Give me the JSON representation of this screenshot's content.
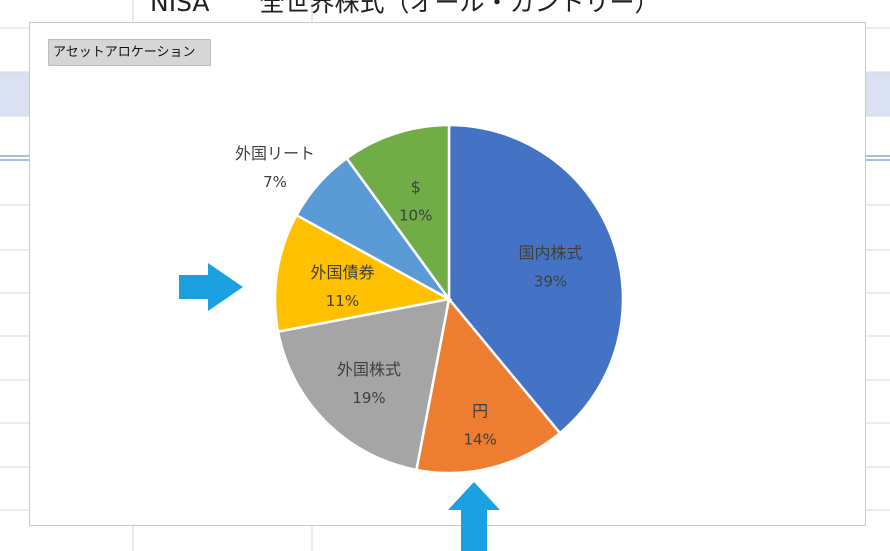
{
  "sheet": {
    "title": "NISA　　全世界株式（オール・カントリー）"
  },
  "chart": {
    "field_button": "アセットアロケーション"
  },
  "colors": {
    "国内株式": "#4472c4",
    "円": "#ed7d31",
    "外国株式": "#a5a5a5",
    "外国債券": "#ffc000",
    "外国リート": "#5b9bd5",
    "$": "#70ad47",
    "arrow": "#1ba1e2",
    "grid": "#d9d9d9"
  },
  "chart_data": {
    "type": "pie",
    "title": "",
    "categories": [
      "国内株式",
      "円",
      "外国株式",
      "外国債券",
      "外国リート",
      "$"
    ],
    "values": [
      39,
      14,
      19,
      11,
      7,
      10
    ],
    "percent_labels": [
      "39%",
      "14%",
      "19%",
      "11%",
      "7%",
      "10%"
    ],
    "start_angle_deg": 0,
    "direction": "clockwise",
    "data_labels": "category and percent",
    "legend": "none"
  },
  "annotations": {
    "arrows": [
      "arrow-right",
      "arrow-up"
    ]
  }
}
